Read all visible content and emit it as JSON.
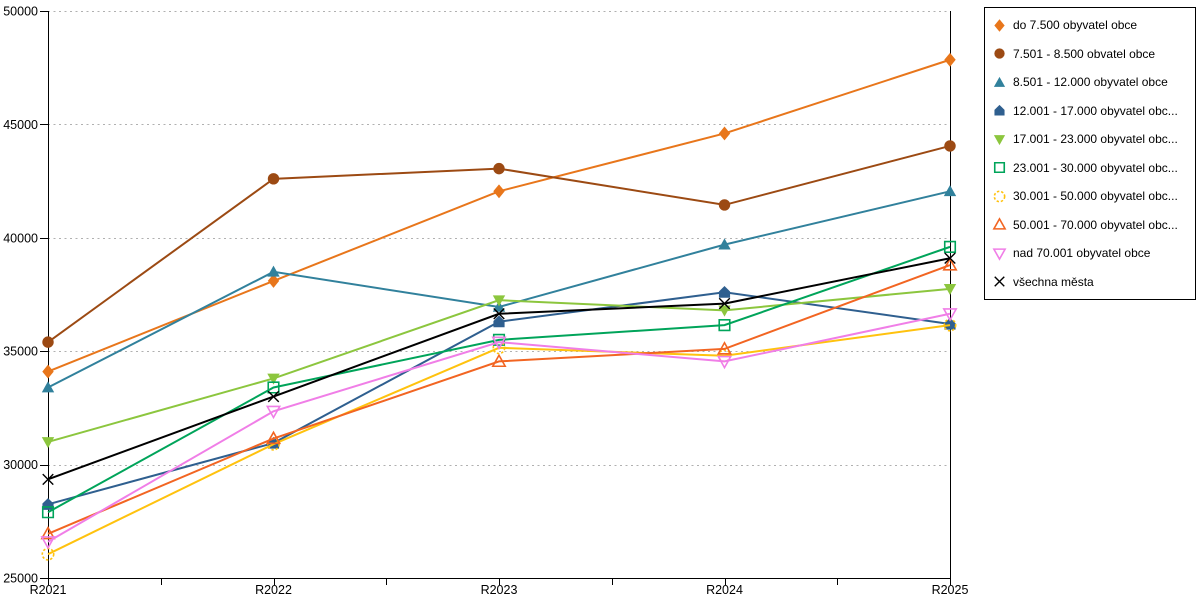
{
  "window": {
    "background": "#ffffff"
  },
  "chart": {
    "frame_color": "#000000",
    "grid_color": "#b0b0b0",
    "y_axis": {
      "min": 25000,
      "max": 50000,
      "step": 5000,
      "ticks": [
        {
          "value": 25000,
          "label": "25000"
        },
        {
          "value": 30000,
          "label": "30000"
        },
        {
          "value": 35000,
          "label": "35000"
        },
        {
          "value": 40000,
          "label": "40000"
        },
        {
          "value": 45000,
          "label": "45000"
        },
        {
          "value": 50000,
          "label": "50000"
        }
      ]
    },
    "x_axis": {
      "labels": [
        "R2021",
        "R2022",
        "R2023",
        "R2024",
        "R2025"
      ],
      "minor_ticks_between_labels": true
    }
  },
  "chart_data": {
    "type": "line",
    "title": "",
    "xlabel": "",
    "ylabel": "",
    "categories": [
      "R2021",
      "R2022",
      "R2023",
      "R2024",
      "R2025"
    ],
    "ylim": [
      25000,
      50000
    ],
    "grid": "horizontal dotted",
    "legend_position": "right",
    "series": [
      {
        "label": "do 7.500 obyvatel obce",
        "marker": "diamond",
        "filled": true,
        "dashed_marker": false,
        "color": "#E8761B",
        "values": [
          34100,
          38100,
          42050,
          44600,
          47850
        ]
      },
      {
        "label": "7.501 - 8.500 obvatel obce",
        "marker": "circle",
        "filled": true,
        "dashed_marker": false,
        "color": "#9C4A13",
        "values": [
          35400,
          42600,
          43050,
          41450,
          44050
        ]
      },
      {
        "label": "8.501 - 12.000 obyvatel obce",
        "marker": "triangle-up",
        "filled": true,
        "dashed_marker": false,
        "color": "#31819C",
        "values": [
          33400,
          38500,
          36950,
          39700,
          42050
        ]
      },
      {
        "label": "12.001 - 17.000 obyvatel obc...",
        "marker": "pentagon",
        "filled": true,
        "dashed_marker": false,
        "color": "#2F5F8F",
        "values": [
          28250,
          30950,
          36300,
          37600,
          36200
        ]
      },
      {
        "label": "17.001 - 23.000 obyvatel obc...",
        "marker": "triangle-down",
        "filled": true,
        "dashed_marker": false,
        "color": "#8CC63E",
        "values": [
          31000,
          33800,
          37250,
          36800,
          37750
        ]
      },
      {
        "label": "23.001 - 30.000 obyvatel obc...",
        "marker": "square",
        "filled": false,
        "dashed_marker": false,
        "color": "#00A45A",
        "values": [
          27900,
          33400,
          35500,
          36150,
          39600
        ]
      },
      {
        "label": "30.001 - 50.000 obyvatel obc...",
        "marker": "circle",
        "filled": false,
        "dashed_marker": true,
        "color": "#FFC20E",
        "values": [
          26050,
          30900,
          35150,
          34800,
          36150
        ]
      },
      {
        "label": "50.001 - 70.000 obyvatel obc...",
        "marker": "triangle-up",
        "filled": false,
        "dashed_marker": false,
        "color": "#F26522",
        "values": [
          26950,
          31150,
          34550,
          35100,
          38800
        ]
      },
      {
        "label": "nad 70.001 obyvatel obce",
        "marker": "triangle-down",
        "filled": false,
        "dashed_marker": false,
        "color": "#F07EE7",
        "values": [
          26600,
          32350,
          35400,
          34550,
          36650
        ]
      },
      {
        "label": "všechna města",
        "marker": "x",
        "filled": false,
        "dashed_marker": false,
        "color": "#000000",
        "values": [
          29350,
          33000,
          36650,
          37100,
          39100
        ]
      }
    ]
  },
  "legend": {
    "border_color": "#000000",
    "background": "#ffffff"
  }
}
